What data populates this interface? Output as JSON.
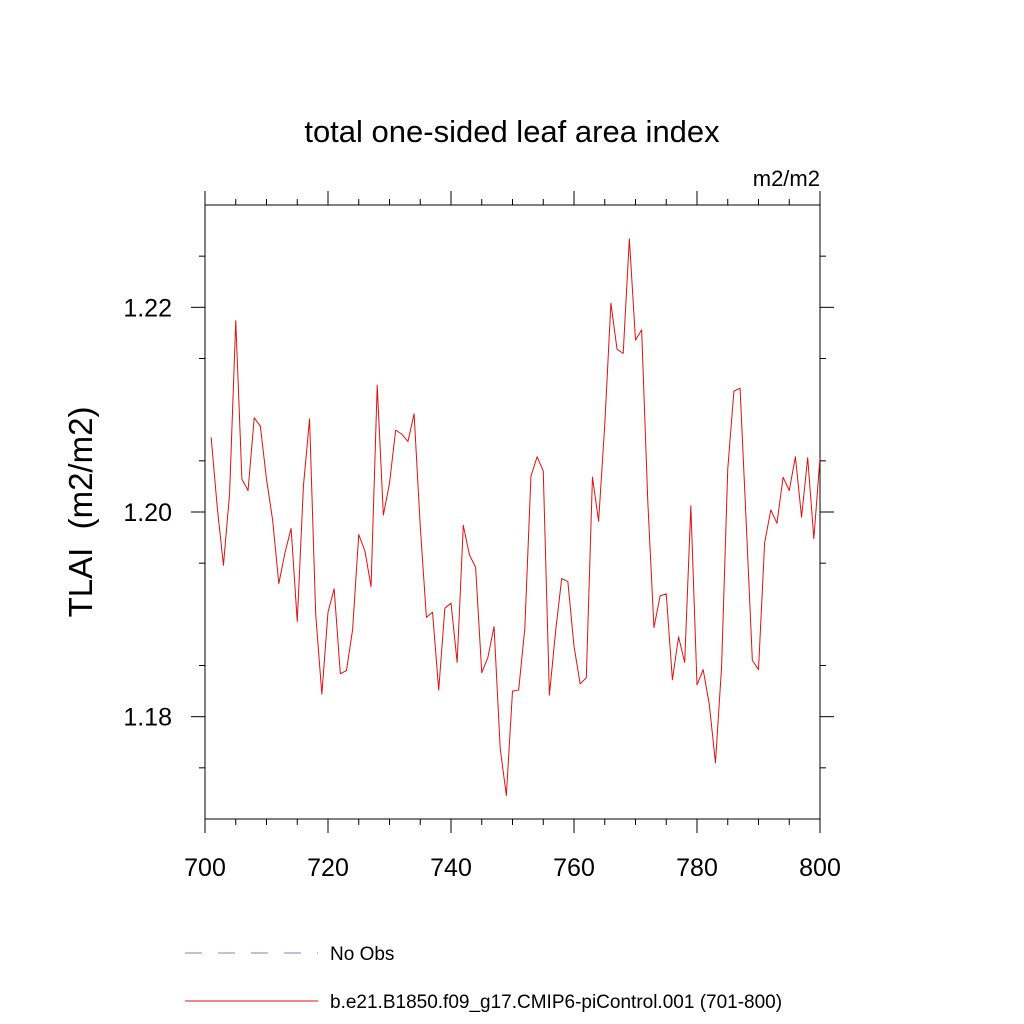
{
  "chart_data": {
    "type": "line",
    "title": "total one-sided leaf area index",
    "units_label": "m2/m2",
    "xlabel": "",
    "ylabel": "TLAI  (m2/m2)",
    "xlim": [
      700,
      800
    ],
    "ylim": [
      1.17,
      1.23
    ],
    "x_ticks": [
      700,
      720,
      740,
      760,
      780,
      800
    ],
    "x_tick_labels": [
      "700",
      "720",
      "740",
      "760",
      "780",
      "800"
    ],
    "y_ticks": [
      1.18,
      1.2,
      1.22
    ],
    "y_tick_labels": [
      "1.18",
      "1.20",
      "1.22"
    ],
    "legend": [
      {
        "label": "No Obs",
        "color": "#8080c0",
        "style": "dashed"
      },
      {
        "label": "b.e21.B1850.f09_g17.CMIP6-piControl.001 (701-800)",
        "color": "#e01010",
        "style": "solid"
      }
    ],
    "series": [
      {
        "name": "b.e21.B1850.f09_g17.CMIP6-piControl.001 (701-800)",
        "color": "#e01010",
        "x_start": 701,
        "x_step": 1,
        "values": [
          1.2073,
          1.2004,
          1.1948,
          1.2018,
          1.2187,
          1.2032,
          1.2021,
          1.2092,
          1.2084,
          1.2032,
          1.1992,
          1.193,
          1.196,
          1.1984,
          1.1893,
          1.2025,
          1.2091,
          1.19,
          1.1822,
          1.1902,
          1.1925,
          1.1842,
          1.1845,
          1.1885,
          1.1978,
          1.1962,
          1.1927,
          1.2124,
          1.1997,
          1.2028,
          1.208,
          1.2076,
          1.2069,
          1.2096,
          1.1986,
          1.1897,
          1.1902,
          1.1826,
          1.1906,
          1.1911,
          1.1853,
          1.1987,
          1.1958,
          1.1946,
          1.1843,
          1.1858,
          1.1888,
          1.1769,
          1.1723,
          1.1825,
          1.1826,
          1.1886,
          1.2035,
          1.2054,
          1.204,
          1.1821,
          1.1883,
          1.1935,
          1.1932,
          1.1869,
          1.1832,
          1.1838,
          1.2034,
          1.1991,
          1.2085,
          1.2204,
          1.2159,
          1.2155,
          1.2267,
          1.2168,
          1.2178,
          1.201,
          1.1887,
          1.1918,
          1.192,
          1.1836,
          1.1878,
          1.1853,
          1.2006,
          1.1831,
          1.1846,
          1.1812,
          1.1755,
          1.1849,
          1.2042,
          1.2118,
          1.2121,
          1.199,
          1.1855,
          1.1846,
          1.197,
          1.2002,
          1.1989,
          1.2034,
          1.2021,
          1.2054,
          1.1995,
          1.2053,
          1.1974,
          1.2053
        ]
      }
    ]
  }
}
